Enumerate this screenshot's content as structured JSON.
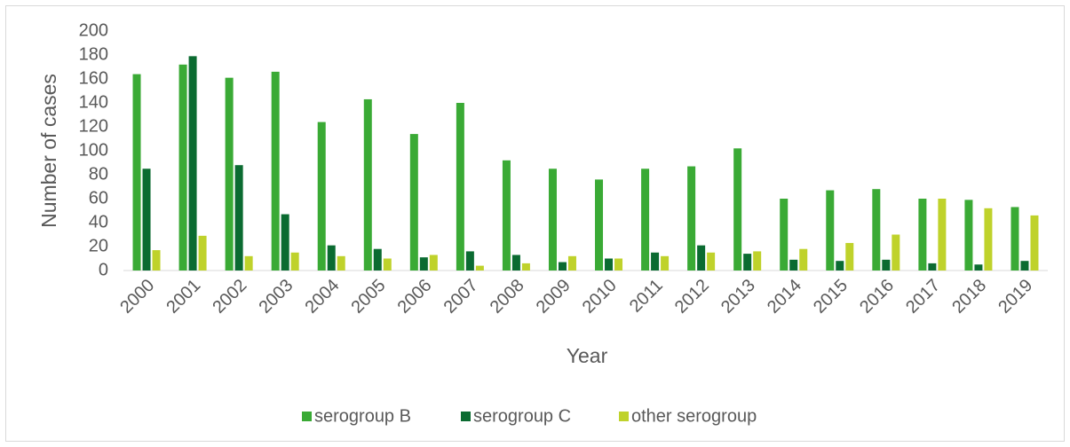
{
  "chart_data": {
    "type": "bar",
    "xlabel": "Year",
    "ylabel": "Number of cases",
    "categories": [
      "2000",
      "2001",
      "2002",
      "2003",
      "2004",
      "2005",
      "2006",
      "2007",
      "2008",
      "2009",
      "2010",
      "2011",
      "2012",
      "2013",
      "2014",
      "2015",
      "2016",
      "2017",
      "2018",
      "2019"
    ],
    "series": [
      {
        "name": "serogroup B",
        "color": "#3aaa35",
        "values": [
          164,
          172,
          161,
          166,
          124,
          143,
          114,
          140,
          92,
          85,
          76,
          85,
          87,
          102,
          60,
          67,
          68,
          60,
          59,
          53
        ]
      },
      {
        "name": "serogroup C",
        "color": "#0b6b31",
        "values": [
          85,
          179,
          88,
          47,
          21,
          18,
          11,
          16,
          13,
          7,
          10,
          15,
          21,
          14,
          9,
          8,
          9,
          6,
          5,
          8
        ]
      },
      {
        "name": "other serogroup",
        "color": "#bfd22b",
        "values": [
          17,
          29,
          12,
          15,
          12,
          10,
          13,
          4,
          6,
          12,
          10,
          12,
          15,
          16,
          18,
          23,
          30,
          60,
          52,
          46
        ]
      }
    ],
    "ylim": [
      0,
      200
    ],
    "yticks": [
      0,
      20,
      40,
      60,
      80,
      100,
      120,
      140,
      160,
      180,
      200
    ],
    "legend": "bottom"
  }
}
